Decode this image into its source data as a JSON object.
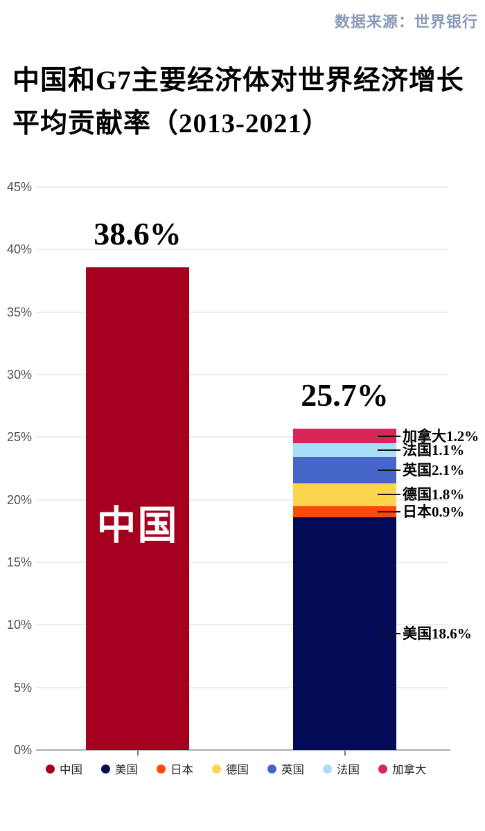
{
  "source_label": "数据来源：世界银行",
  "title": {
    "line1": "中国和G7主要经济体对世界经济增长",
    "line2": "平均贡献率（2013-2021）"
  },
  "chart_data": {
    "type": "bar",
    "stacked": true,
    "title": "中国和G7主要经济体对世界经济增长平均贡献率（2013-2021）",
    "source": "数据来源：世界银行",
    "unit": "%",
    "grid": true,
    "legend_position": "bottom",
    "y_axis": {
      "min": 0,
      "max": 45,
      "step": 5,
      "suffix": "%"
    },
    "bars": [
      {
        "id": "china",
        "total": 38.6,
        "total_label": "38.6%",
        "inner_label": "中国",
        "segments": [
          {
            "id": "china",
            "name": "中国",
            "value": 38.6,
            "color": "#a6001f"
          }
        ]
      },
      {
        "id": "g7",
        "total": 25.7,
        "total_label": "25.7%",
        "segments": [
          {
            "id": "usa",
            "name": "美国",
            "value": 18.6,
            "color": "#040b56",
            "callout": "美国18.6%"
          },
          {
            "id": "japan",
            "name": "日本",
            "value": 0.9,
            "color": "#fd4a0b",
            "callout": "日本0.9%"
          },
          {
            "id": "germany",
            "name": "德国",
            "value": 1.8,
            "color": "#fdd54d",
            "callout": "德国1.8%"
          },
          {
            "id": "uk",
            "name": "英国",
            "value": 2.1,
            "color": "#4565c9",
            "callout": "英国2.1%"
          },
          {
            "id": "france",
            "name": "法国",
            "value": 1.1,
            "color": "#a9def7",
            "callout": "法国1.1%"
          },
          {
            "id": "canada",
            "name": "加拿大",
            "value": 1.2,
            "color": "#d92557",
            "callout": "加拿大1.2%"
          }
        ]
      }
    ],
    "legend": [
      {
        "id": "china",
        "label": "中国",
        "color": "#a6001f"
      },
      {
        "id": "usa",
        "label": "美国",
        "color": "#040b56"
      },
      {
        "id": "japan",
        "label": "日本",
        "color": "#fd4a0b"
      },
      {
        "id": "germany",
        "label": "德国",
        "color": "#fdd54d"
      },
      {
        "id": "uk",
        "label": "英国",
        "color": "#4565c9"
      },
      {
        "id": "france",
        "label": "法国",
        "color": "#a9def7"
      },
      {
        "id": "canada",
        "label": "加拿大",
        "color": "#d92557"
      }
    ]
  }
}
